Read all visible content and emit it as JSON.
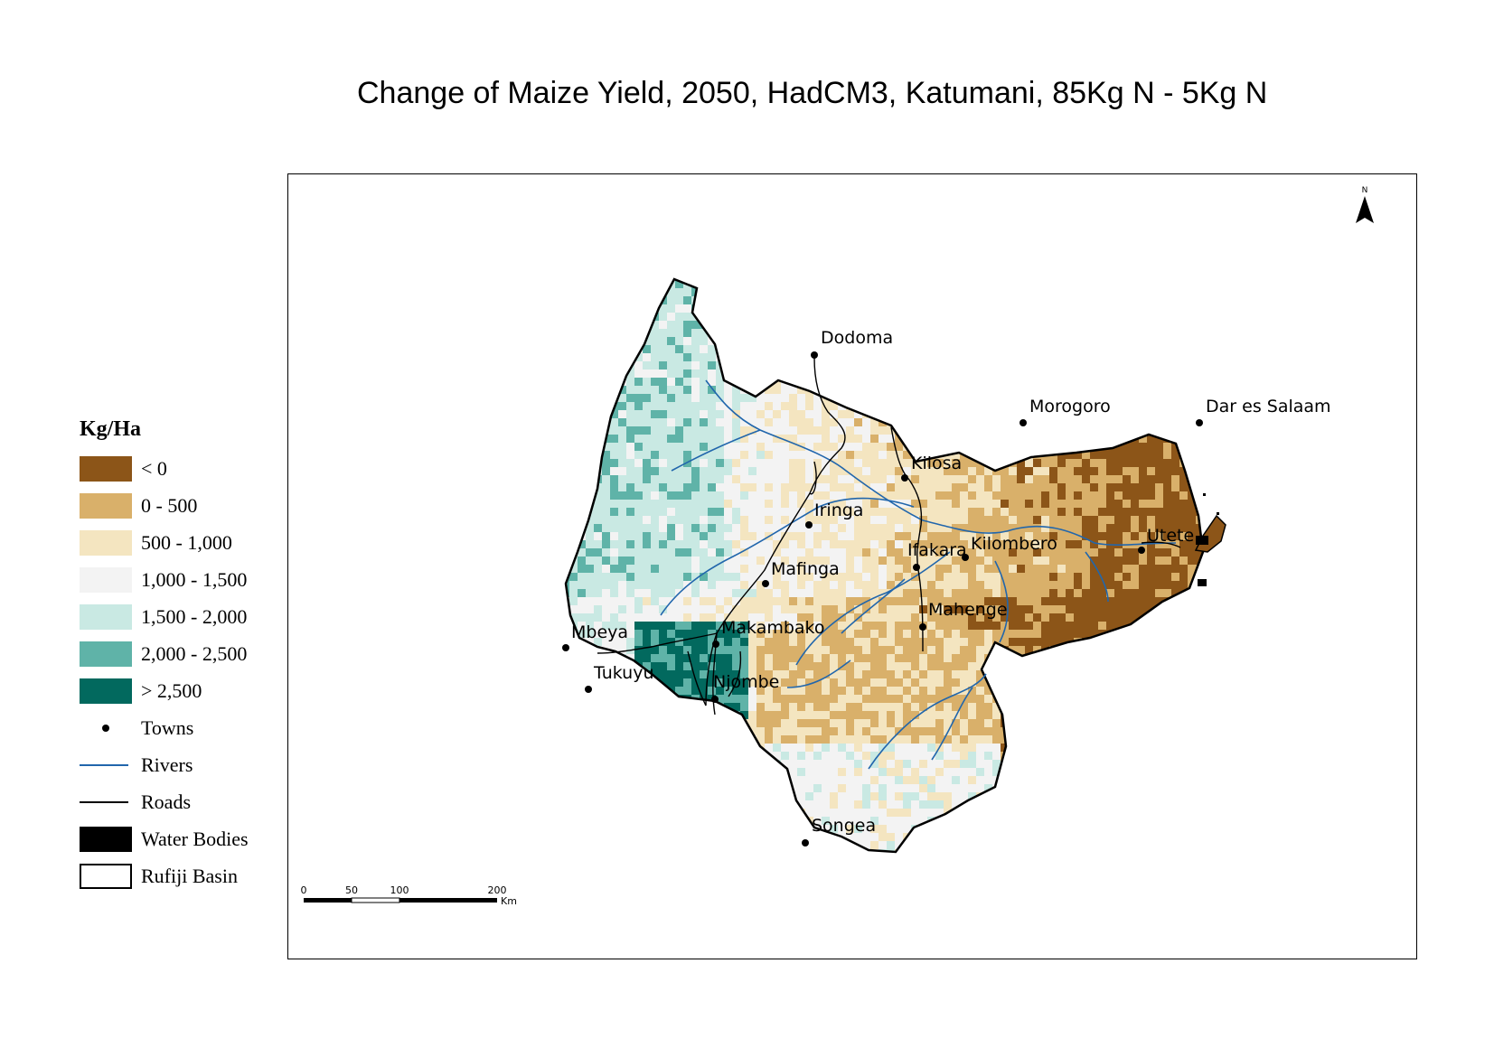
{
  "title": "Change of Maize Yield, 2050, HadCM3, Katumani, 85Kg N - 5Kg N",
  "legend": {
    "title": "Kg/Ha",
    "classes": [
      {
        "label": "< 0",
        "color": "#8c5518"
      },
      {
        "label": "0 - 500",
        "color": "#d9b06a"
      },
      {
        "label": "500 - 1,000",
        "color": "#f4e5c0"
      },
      {
        "label": "1,000 - 1,500",
        "color": "#f3f3f3"
      },
      {
        "label": "1,500 - 2,000",
        "color": "#c9e9e3"
      },
      {
        "label": "2,000 - 2,500",
        "color": "#5fb3a8"
      },
      {
        "label": "> 2,500",
        "color": "#02695e"
      }
    ],
    "symbols": {
      "towns": "Towns",
      "rivers": "Rivers",
      "roads": "Roads",
      "water": "Water Bodies",
      "basin": "Rufiji Basin"
    }
  },
  "colors": {
    "river": "#2166ac",
    "road": "#000000",
    "town": "#000000"
  },
  "towns": [
    {
      "name": "Dodoma"
    },
    {
      "name": "Morogoro"
    },
    {
      "name": "Dar es Salaam"
    },
    {
      "name": "Kilosa"
    },
    {
      "name": "Iringa"
    },
    {
      "name": "Mafinga"
    },
    {
      "name": "Ifakara"
    },
    {
      "name": "Kilombero"
    },
    {
      "name": "Utete"
    },
    {
      "name": "Mahenge"
    },
    {
      "name": "Makambako"
    },
    {
      "name": "Mbeya"
    },
    {
      "name": "Tukuyu"
    },
    {
      "name": "Njombe"
    },
    {
      "name": "Songea"
    }
  ],
  "scale_bar": {
    "ticks": [
      "0",
      "50",
      "100",
      "200"
    ],
    "unit": "Km"
  },
  "north_arrow": {
    "label": "N",
    "icon": "north-arrow-icon"
  }
}
